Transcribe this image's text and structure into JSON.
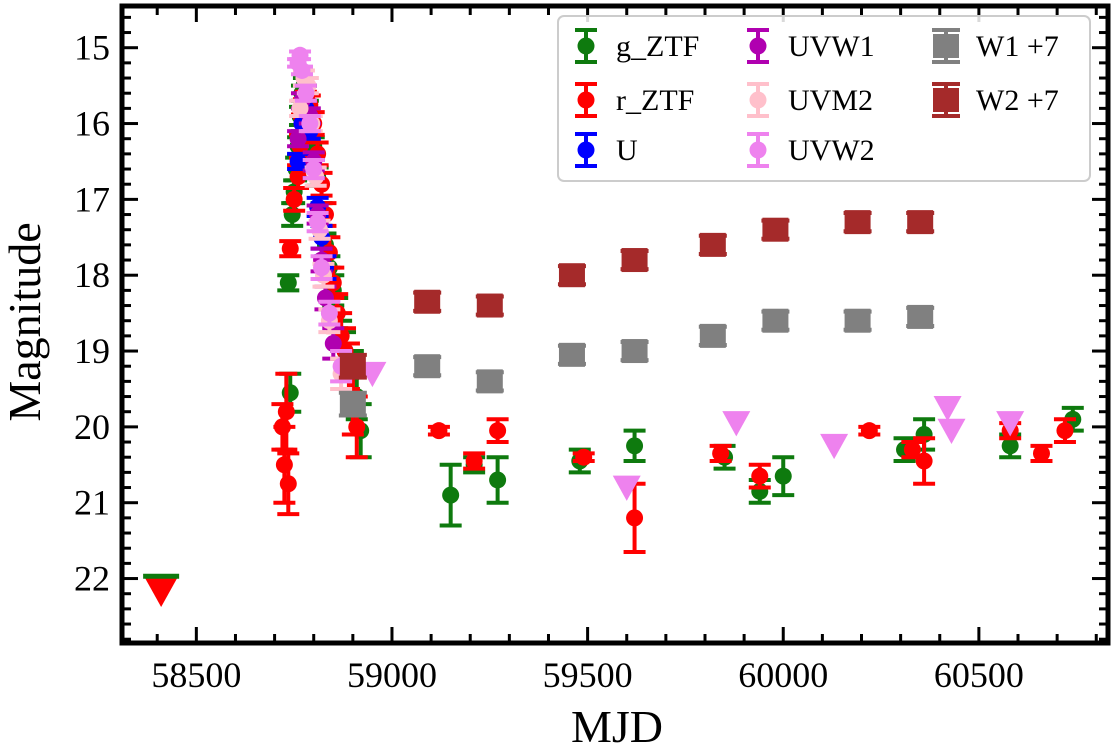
{
  "chart_data": {
    "type": "scatter",
    "xlabel": "MJD",
    "ylabel": "Magnitude",
    "xlim": [
      58310,
      60830
    ],
    "ylim": [
      22.85,
      14.45
    ],
    "y_inverted": true,
    "x_ticks": [
      58500,
      59000,
      59500,
      60000,
      60500
    ],
    "x_tick_labels": [
      "58500",
      "59000",
      "59500",
      "60000",
      "60500"
    ],
    "y_ticks": [
      15,
      16,
      17,
      18,
      19,
      20,
      21,
      22
    ],
    "y_tick_labels": [
      "15",
      "16",
      "17",
      "18",
      "19",
      "20",
      "21",
      "22"
    ],
    "grid": false,
    "legend_placement": "top-right",
    "legend_columns": 3,
    "series": [
      {
        "name": "g_ZTF",
        "color": "#0e7a0e",
        "marker": "circle",
        "points": [
          [
            58740,
            19.55,
            0.25
          ],
          [
            58745,
            17.2,
            0.15
          ],
          [
            58750,
            16.9,
            0.15
          ],
          [
            58755,
            16.6,
            0.15
          ],
          [
            58760,
            16.3,
            0.12
          ],
          [
            58765,
            15.9,
            0.12
          ],
          [
            58770,
            15.6,
            0.1
          ],
          [
            58775,
            15.5,
            0.1
          ],
          [
            58780,
            15.6,
            0.1
          ],
          [
            58785,
            15.8,
            0.1
          ],
          [
            58790,
            16.0,
            0.12
          ],
          [
            58800,
            16.3,
            0.12
          ],
          [
            58810,
            16.7,
            0.12
          ],
          [
            58820,
            17.2,
            0.15
          ],
          [
            58830,
            17.6,
            0.15
          ],
          [
            58840,
            17.9,
            0.15
          ],
          [
            58850,
            18.2,
            0.2
          ],
          [
            58860,
            18.5,
            0.2
          ],
          [
            58870,
            18.8,
            0.2
          ],
          [
            58880,
            19.0,
            0.25
          ],
          [
            58900,
            19.3,
            0.3
          ],
          [
            58910,
            19.6,
            0.3
          ],
          [
            58920,
            20.05,
            0.35
          ],
          [
            58735,
            18.1,
            0.1
          ],
          [
            59150,
            20.9,
            0.4
          ],
          [
            59210,
            20.5,
            0.1
          ],
          [
            59270,
            20.7,
            0.3
          ],
          [
            59480,
            20.45,
            0.15
          ],
          [
            59620,
            20.25,
            0.2
          ],
          [
            59850,
            20.4,
            0.15
          ],
          [
            59940,
            20.85,
            0.15
          ],
          [
            60000,
            20.65,
            0.25
          ],
          [
            60310,
            20.3,
            0.15
          ],
          [
            60360,
            20.1,
            0.2
          ],
          [
            60580,
            20.25,
            0.15
          ],
          [
            60740,
            19.9,
            0.15
          ]
        ]
      },
      {
        "name": "r_ZTF",
        "color": "#ff0000",
        "marker": "circle",
        "points": [
          [
            58720,
            20.0,
            0.3
          ],
          [
            58725,
            20.5,
            0.5
          ],
          [
            58730,
            19.8,
            0.5
          ],
          [
            58735,
            20.75,
            0.4
          ],
          [
            58740,
            17.65,
            0.1
          ],
          [
            58750,
            17.0,
            0.15
          ],
          [
            58760,
            16.7,
            0.15
          ],
          [
            58765,
            16.3,
            0.15
          ],
          [
            58770,
            16.0,
            0.12
          ],
          [
            58775,
            15.8,
            0.12
          ],
          [
            58780,
            15.7,
            0.12
          ],
          [
            58790,
            15.75,
            0.12
          ],
          [
            58800,
            16.0,
            0.15
          ],
          [
            58810,
            16.4,
            0.15
          ],
          [
            58820,
            16.8,
            0.15
          ],
          [
            58830,
            17.2,
            0.15
          ],
          [
            58840,
            17.7,
            0.2
          ],
          [
            58850,
            18.1,
            0.2
          ],
          [
            58860,
            18.5,
            0.25
          ],
          [
            58870,
            18.8,
            0.3
          ],
          [
            58880,
            19.0,
            0.3
          ],
          [
            58890,
            19.2,
            0.3
          ],
          [
            58900,
            19.6,
            0.5
          ],
          [
            58910,
            20.0,
            0.4
          ],
          [
            59120,
            20.05,
            0.05
          ],
          [
            59210,
            20.45,
            0.1
          ],
          [
            59270,
            20.05,
            0.15
          ],
          [
            59490,
            20.4,
            0.05
          ],
          [
            59620,
            21.2,
            0.45
          ],
          [
            59840,
            20.35,
            0.1
          ],
          [
            59940,
            20.65,
            0.15
          ],
          [
            60220,
            20.05,
            0.05
          ],
          [
            60330,
            20.3,
            0.1
          ],
          [
            60360,
            20.45,
            0.3
          ],
          [
            60580,
            20.05,
            0.1
          ],
          [
            60660,
            20.35,
            0.1
          ],
          [
            60720,
            20.05,
            0.15
          ]
        ]
      },
      {
        "name": "U",
        "color": "#0000ff",
        "marker": "circle",
        "points": [
          [
            58760,
            16.5,
            0.1
          ],
          [
            58770,
            16.0,
            0.1
          ],
          [
            58780,
            15.8,
            0.1
          ],
          [
            58790,
            16.1,
            0.1
          ],
          [
            58800,
            16.6,
            0.12
          ],
          [
            58810,
            17.1,
            0.12
          ],
          [
            58820,
            17.5,
            0.15
          ],
          [
            58830,
            17.9,
            0.15
          ]
        ]
      },
      {
        "name": "UVW1",
        "color": "#b000b0",
        "marker": "circle",
        "points": [
          [
            58760,
            16.2,
            0.1
          ],
          [
            58770,
            15.7,
            0.1
          ],
          [
            58780,
            15.6,
            0.1
          ],
          [
            58790,
            15.9,
            0.1
          ],
          [
            58800,
            16.5,
            0.12
          ],
          [
            58810,
            17.2,
            0.12
          ],
          [
            58820,
            17.8,
            0.15
          ],
          [
            58830,
            18.3,
            0.15
          ],
          [
            58850,
            18.9,
            0.2
          ]
        ]
      },
      {
        "name": "UVM2",
        "color": "#ffc0cb",
        "marker": "circle",
        "points": [
          [
            58765,
            15.8,
            0.1
          ],
          [
            58775,
            15.4,
            0.1
          ],
          [
            58785,
            15.5,
            0.1
          ],
          [
            58795,
            16.0,
            0.1
          ],
          [
            58805,
            16.7,
            0.12
          ],
          [
            58815,
            17.4,
            0.12
          ],
          [
            58825,
            18.0,
            0.15
          ],
          [
            58840,
            18.6,
            0.15
          ],
          [
            58870,
            19.3,
            0.2
          ]
        ]
      },
      {
        "name": "UVW2",
        "color": "#ee82ee",
        "marker": "circle",
        "points": [
          [
            58760,
            15.2,
            0.05
          ],
          [
            58765,
            15.1,
            0.05
          ],
          [
            58770,
            15.3,
            0.05
          ],
          [
            58780,
            15.6,
            0.1
          ],
          [
            58790,
            16.0,
            0.1
          ],
          [
            58800,
            16.6,
            0.12
          ],
          [
            58810,
            17.3,
            0.12
          ],
          [
            58820,
            17.9,
            0.15
          ],
          [
            58840,
            18.5,
            0.15
          ],
          [
            58870,
            19.2,
            0.2
          ]
        ]
      },
      {
        "name": "UVW2 upper limits",
        "color": "#ee82ee",
        "marker": "triangle-down",
        "points": [
          [
            58950,
            19.3,
            0
          ],
          [
            59600,
            20.8,
            0
          ],
          [
            59880,
            19.95,
            0
          ],
          [
            60130,
            20.25,
            0
          ],
          [
            60420,
            19.75,
            0
          ],
          [
            60430,
            20.05,
            0
          ],
          [
            60580,
            19.95,
            0
          ]
        ]
      },
      {
        "name": "r_ZTF upper limit",
        "color": "#ff0000",
        "marker": "triangle-down",
        "points": [
          [
            58410,
            22.15,
            0
          ]
        ]
      },
      {
        "name": "g_ZTF upper limit",
        "color": "#0e7a0e",
        "marker": "bar",
        "points": [
          [
            58410,
            21.97,
            0
          ]
        ]
      },
      {
        "name": "W1 +7",
        "color": "#808080",
        "marker": "square",
        "points": [
          [
            58900,
            19.7,
            0.15
          ],
          [
            59090,
            19.2,
            0.12
          ],
          [
            59250,
            19.4,
            0.12
          ],
          [
            59460,
            19.05,
            0.12
          ],
          [
            59620,
            19.0,
            0.12
          ],
          [
            59820,
            18.8,
            0.12
          ],
          [
            59980,
            18.6,
            0.12
          ],
          [
            60190,
            18.6,
            0.12
          ],
          [
            60350,
            18.55,
            0.12
          ]
        ]
      },
      {
        "name": "W2 +7",
        "color": "#a52a2a",
        "marker": "square",
        "points": [
          [
            58900,
            19.2,
            0.15
          ],
          [
            59090,
            18.35,
            0.12
          ],
          [
            59250,
            18.4,
            0.12
          ],
          [
            59460,
            18.0,
            0.12
          ],
          [
            59620,
            17.8,
            0.12
          ],
          [
            59820,
            17.6,
            0.12
          ],
          [
            59980,
            17.4,
            0.12
          ],
          [
            60190,
            17.3,
            0.12
          ],
          [
            60350,
            17.3,
            0.12
          ]
        ]
      }
    ],
    "legend_items": [
      {
        "label": "g_ZTF",
        "color": "#0e7a0e",
        "marker": "circle"
      },
      {
        "label": "r_ZTF",
        "color": "#ff0000",
        "marker": "circle"
      },
      {
        "label": "U",
        "color": "#0000ff",
        "marker": "circle"
      },
      {
        "label": "UVW1",
        "color": "#b000b0",
        "marker": "circle"
      },
      {
        "label": "UVM2",
        "color": "#ffc0cb",
        "marker": "circle"
      },
      {
        "label": "UVW2",
        "color": "#ee82ee",
        "marker": "circle"
      },
      {
        "label": "W1 +7",
        "color": "#808080",
        "marker": "square"
      },
      {
        "label": "W2 +7",
        "color": "#a52a2a",
        "marker": "square"
      }
    ]
  }
}
